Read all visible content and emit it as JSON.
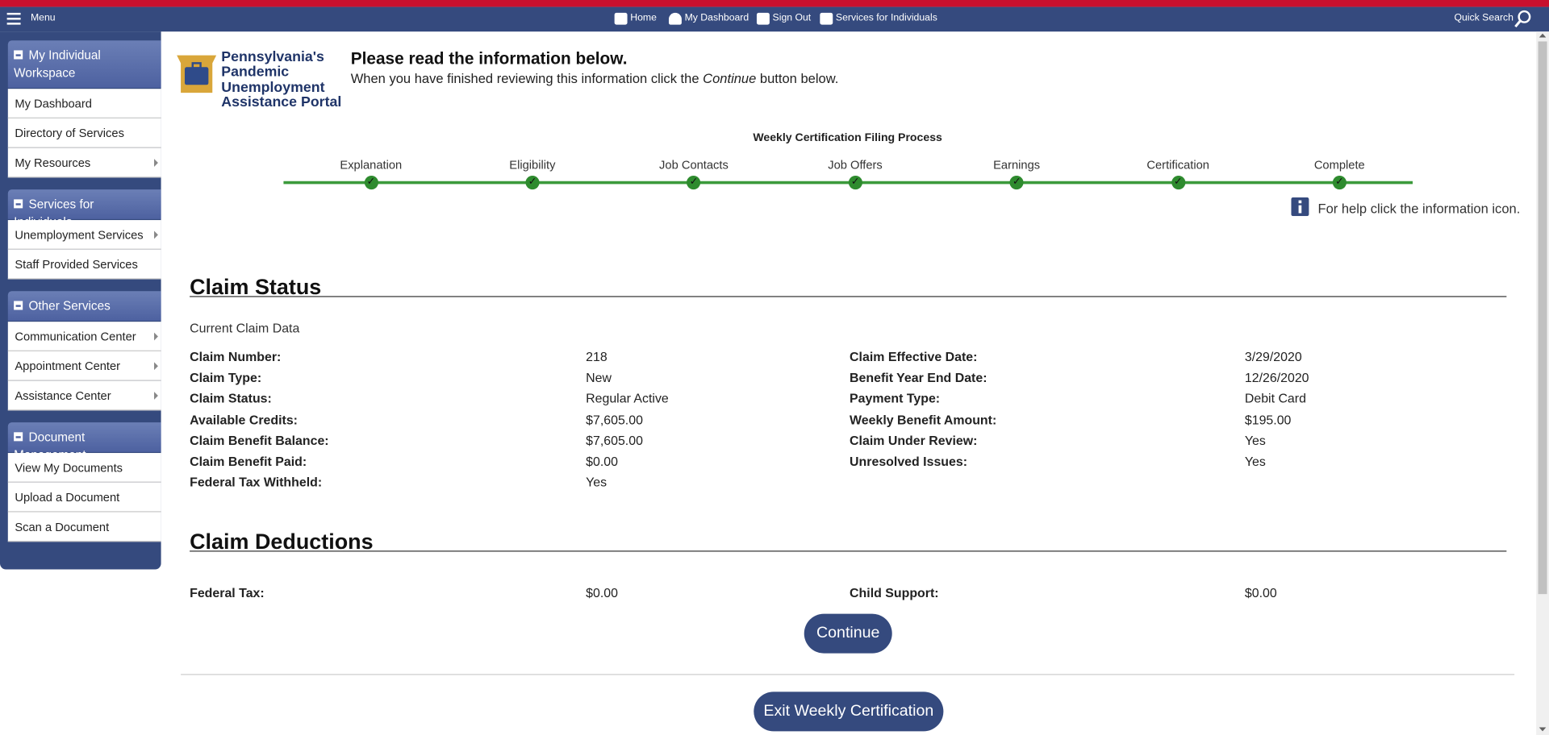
{
  "nav": {
    "menu": "Menu",
    "items": [
      "Home",
      "My Dashboard",
      "Sign Out",
      "Services for Individuals"
    ],
    "search": "Quick Search"
  },
  "sidebar": [
    {
      "title": "My Individual Workspace",
      "items": [
        "My Dashboard",
        "Directory of Services",
        "My Resources"
      ]
    },
    {
      "title": "Services for Individuals",
      "items": [
        "Unemployment Services",
        "Staff Provided Services"
      ]
    },
    {
      "title": "Other Services",
      "items": [
        "Communication Center",
        "Appointment Center",
        "Assistance Center"
      ]
    },
    {
      "title": "Document Management",
      "items": [
        "View My Documents",
        "Upload a Document",
        "Scan a Document"
      ]
    }
  ],
  "logo": [
    "Pennsylvania's",
    "Pandemic",
    "Unemployment",
    "Assistance Portal"
  ],
  "header": {
    "title": "Please read the information below.",
    "text_before": "When you have finished reviewing this information click the",
    "text_em": "Continue",
    "text_after": "button below."
  },
  "process": {
    "title": "Weekly Certification Filing Process",
    "steps": [
      "Explanation",
      "Eligibility",
      "Job Contacts",
      "Job Offers",
      "Earnings",
      "Certification",
      "Complete"
    ]
  },
  "help": "For help click the information icon.",
  "claim_status": {
    "title": "Claim Status",
    "subtitle": "Current Claim Data",
    "left": [
      {
        "label": "Claim Number:",
        "value": "218"
      },
      {
        "label": "Claim Type:",
        "value": "New"
      },
      {
        "label": "Claim Status:",
        "value": "Regular Active"
      },
      {
        "label": "Available Credits:",
        "value": "$7,605.00"
      },
      {
        "label": "Claim Benefit Balance:",
        "value": "$7,605.00"
      },
      {
        "label": "Claim Benefit Paid:",
        "value": "$0.00"
      },
      {
        "label": "Federal Tax Withheld:",
        "value": "Yes"
      }
    ],
    "right": [
      {
        "label": "Claim Effective Date:",
        "value": "3/29/2020"
      },
      {
        "label": "Benefit Year End Date:",
        "value": "12/26/2020"
      },
      {
        "label": "Payment Type:",
        "value": "Debit Card"
      },
      {
        "label": "Weekly Benefit Amount:",
        "value": "$195.00"
      },
      {
        "label": "Claim Under Review:",
        "value": "Yes"
      },
      {
        "label": "Unresolved Issues:",
        "value": "Yes"
      }
    ]
  },
  "claim_deductions": {
    "title": "Claim Deductions",
    "left": [
      {
        "label": "Federal Tax:",
        "value": "$0.00"
      }
    ],
    "right": [
      {
        "label": "Child Support:",
        "value": "$0.00"
      }
    ]
  },
  "buttons": {
    "continue": "Continue",
    "exit": "Exit Weekly Certification"
  }
}
